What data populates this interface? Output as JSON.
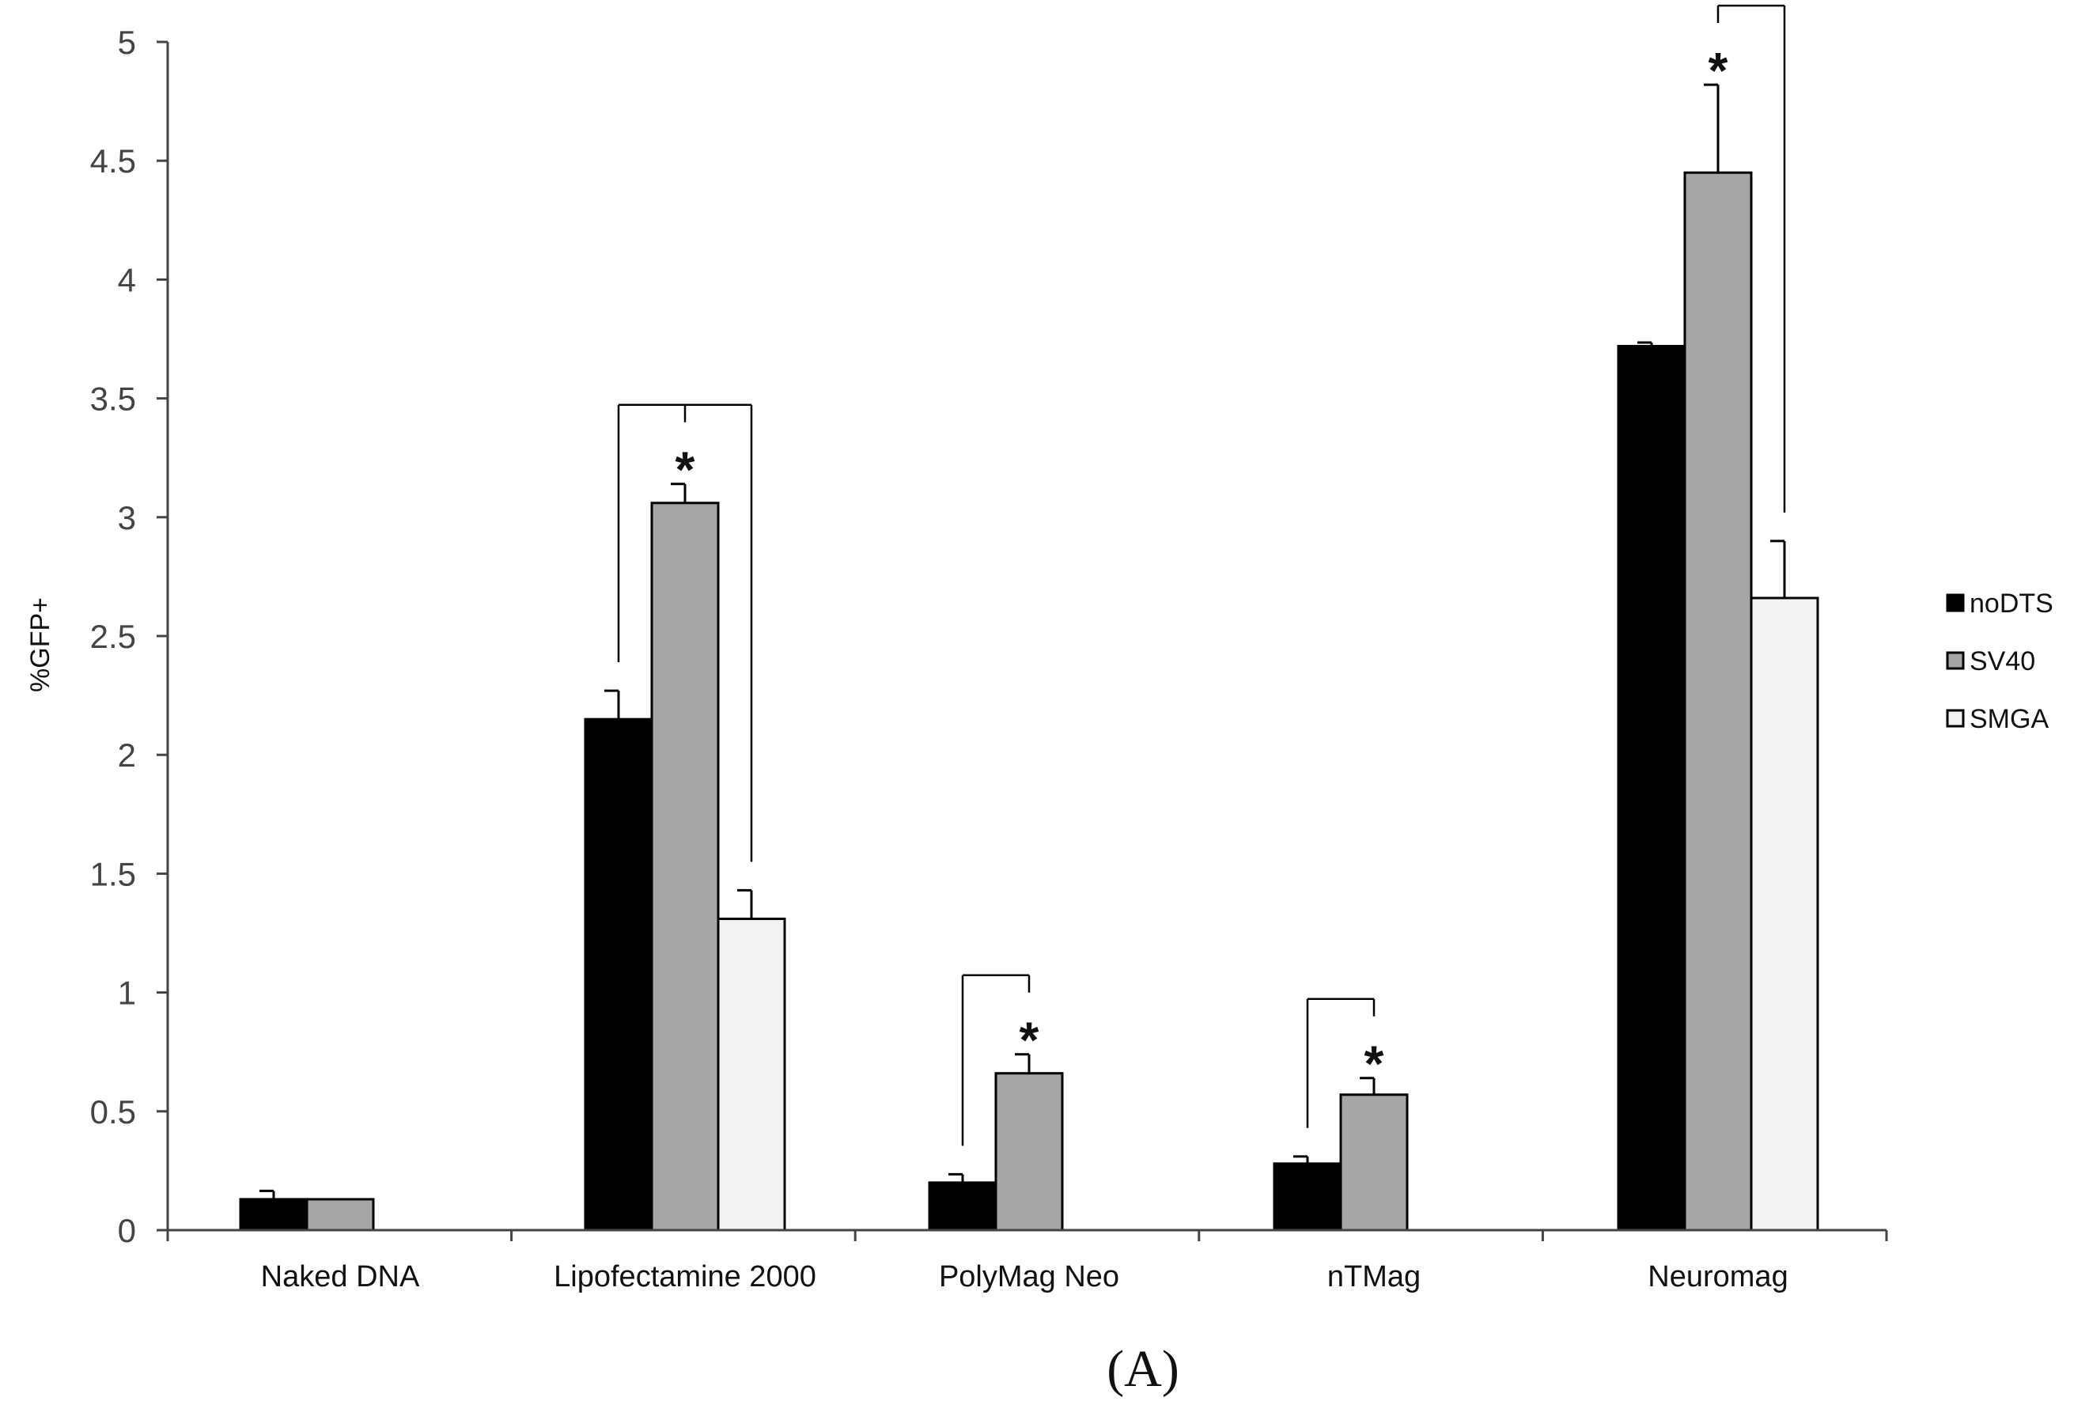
{
  "chart_data": {
    "type": "bar",
    "title": "",
    "xlabel": "",
    "ylabel": "%GFP+",
    "ylim": [
      0,
      5
    ],
    "yticks": [
      "0",
      "0.5",
      "1",
      "1.5",
      "2",
      "2.5",
      "3",
      "3.5",
      "4",
      "4.5",
      "5"
    ],
    "grid": false,
    "legend_position": "right",
    "caption": "(A)",
    "categories": [
      "Naked DNA",
      "Lipofectamine 2000",
      "PolyMag Neo",
      "nTMag",
      "Neuromag"
    ],
    "series": [
      {
        "name": "noDTS",
        "color": "#000000",
        "values": [
          0.13,
          2.15,
          0.2,
          0.28,
          3.72
        ],
        "errors": [
          0.035,
          0.12,
          0.035,
          0.03,
          0.015
        ]
      },
      {
        "name": "SV40",
        "color": "#a6a6a6",
        "values": [
          0.13,
          3.06,
          0.66,
          0.57,
          4.45
        ],
        "errors": [
          null,
          0.08,
          0.08,
          0.07,
          0.37
        ]
      },
      {
        "name": "SMGA",
        "color": "#f2f2f2",
        "values": [
          null,
          1.31,
          null,
          null,
          2.66
        ],
        "errors": [
          null,
          0.12,
          null,
          null,
          0.24
        ]
      }
    ],
    "significance": [
      {
        "category": "Lipofectamine 2000",
        "series": "SV40",
        "compare": [
          "noDTS",
          "SMGA"
        ],
        "label": "*"
      },
      {
        "category": "PolyMag Neo",
        "series": "SV40",
        "compare": [
          "noDTS"
        ],
        "label": "*"
      },
      {
        "category": "nTMag",
        "series": "SV40",
        "compare": [
          "noDTS"
        ],
        "label": "*"
      },
      {
        "category": "Neuromag",
        "series": "SV40",
        "compare": [
          "SMGA"
        ],
        "label": "*"
      }
    ]
  }
}
